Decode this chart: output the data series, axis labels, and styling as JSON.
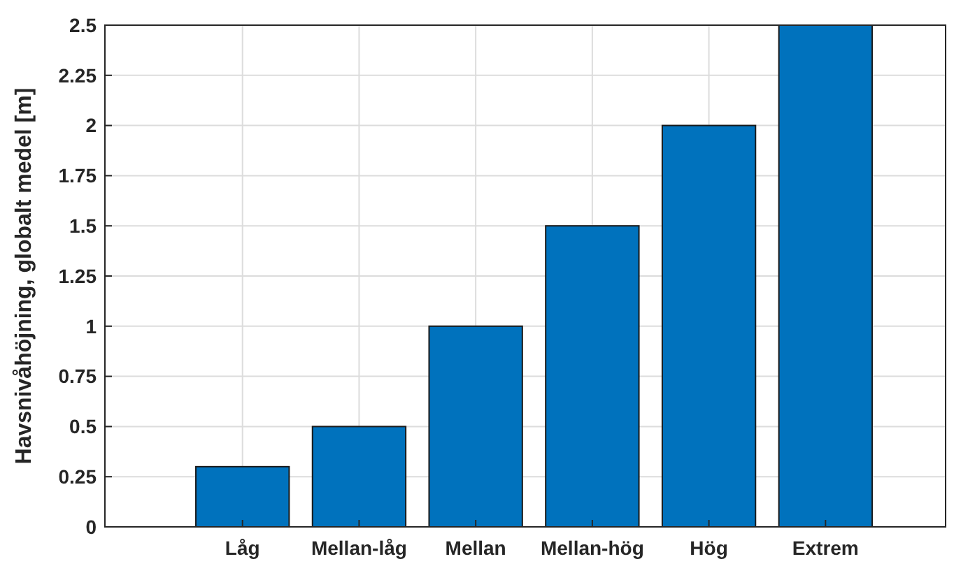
{
  "chart_data": {
    "type": "bar",
    "ylabel": "Havsnivåhöjning, globalt medel [m]",
    "categories": [
      "Låg",
      "Mellan-låg",
      "Mellan",
      "Mellan-hög",
      "Hög",
      "Extrem"
    ],
    "values": [
      0.3,
      0.5,
      1,
      1.5,
      2,
      2.5
    ],
    "color": "#0072bd",
    "ylim": [
      0,
      2.5
    ],
    "yticks": [
      0,
      0.25,
      0.5,
      0.75,
      1,
      1.25,
      1.5,
      1.75,
      2,
      2.25,
      2.5
    ],
    "grid": true
  }
}
